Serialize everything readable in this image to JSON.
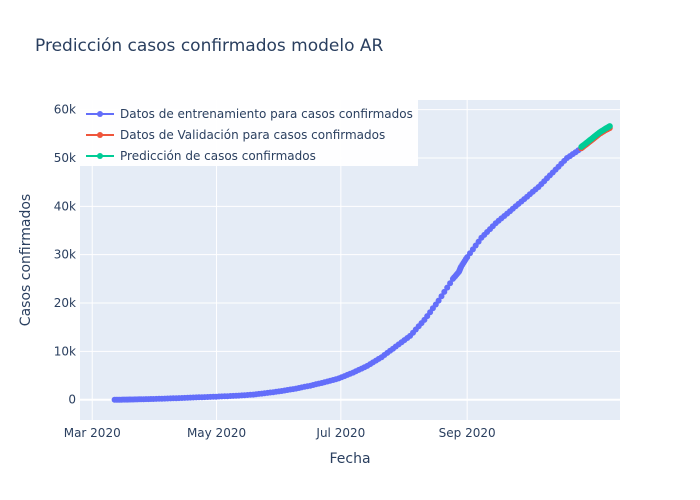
{
  "chart_data": {
    "type": "line",
    "title": "Predicción casos confirmados modelo AR",
    "xlabel": "Fecha",
    "ylabel": "Casos  confirmados",
    "x_range": [
      "2020-02-24",
      "2020-11-15"
    ],
    "ylim": [
      -4200,
      62000
    ],
    "x_ticks": [
      {
        "date": "2020-03-01",
        "label": "Mar 2020"
      },
      {
        "date": "2020-05-01",
        "label": "May 2020"
      },
      {
        "date": "2020-07-01",
        "label": "Jul 2020"
      },
      {
        "date": "2020-09-01",
        "label": "Sep 2020"
      }
    ],
    "y_ticks": [
      {
        "value": 0,
        "label": "0"
      },
      {
        "value": 10000,
        "label": "10k"
      },
      {
        "value": 20000,
        "label": "20k"
      },
      {
        "value": 30000,
        "label": "30k"
      },
      {
        "value": 40000,
        "label": "40k"
      },
      {
        "value": 50000,
        "label": "50k"
      },
      {
        "value": 60000,
        "label": "60k"
      }
    ],
    "grid": true,
    "legend_position": "top-left",
    "plot_background": "#e5ecf6",
    "series": [
      {
        "name": "Datos de entrenamiento para casos confirmados",
        "color": "#636efa",
        "points": [
          [
            "2020-03-12",
            0
          ],
          [
            "2020-03-16",
            10
          ],
          [
            "2020-03-20",
            40
          ],
          [
            "2020-03-25",
            90
          ],
          [
            "2020-03-31",
            150
          ],
          [
            "2020-04-07",
            250
          ],
          [
            "2020-04-14",
            360
          ],
          [
            "2020-04-21",
            470
          ],
          [
            "2020-04-28",
            580
          ],
          [
            "2020-05-05",
            700
          ],
          [
            "2020-05-12",
            850
          ],
          [
            "2020-05-19",
            1050
          ],
          [
            "2020-05-26",
            1400
          ],
          [
            "2020-06-02",
            1800
          ],
          [
            "2020-06-09",
            2300
          ],
          [
            "2020-06-16",
            2900
          ],
          [
            "2020-06-23",
            3600
          ],
          [
            "2020-06-30",
            4400
          ],
          [
            "2020-07-07",
            5600
          ],
          [
            "2020-07-14",
            7000
          ],
          [
            "2020-07-21",
            8800
          ],
          [
            "2020-07-28",
            11000
          ],
          [
            "2020-08-04",
            13200
          ],
          [
            "2020-08-11",
            16500
          ],
          [
            "2020-08-18",
            20500
          ],
          [
            "2020-08-25",
            25000
          ],
          [
            "2020-08-28",
            26500
          ],
          [
            "2020-08-29",
            27500
          ],
          [
            "2020-09-01",
            29500
          ],
          [
            "2020-09-08",
            33500
          ],
          [
            "2020-09-15",
            36500
          ],
          [
            "2020-09-22",
            39000
          ],
          [
            "2020-09-29",
            41500
          ],
          [
            "2020-10-06",
            44000
          ],
          [
            "2020-10-13",
            47000
          ],
          [
            "2020-10-20",
            50000
          ],
          [
            "2020-10-27",
            52000
          ]
        ]
      },
      {
        "name": "Datos de Validación para casos confirmados",
        "color": "#ef553b",
        "points": [
          [
            "2020-10-27",
            52000
          ],
          [
            "2020-10-30",
            53000
          ],
          [
            "2020-11-02",
            54000
          ],
          [
            "2020-11-05",
            55000
          ],
          [
            "2020-11-08",
            55800
          ],
          [
            "2020-11-10",
            56200
          ]
        ]
      },
      {
        "name": "Predicción de casos confirmados",
        "color": "#00cc96",
        "points": [
          [
            "2020-10-27",
            52300
          ],
          [
            "2020-10-30",
            53300
          ],
          [
            "2020-11-02",
            54300
          ],
          [
            "2020-11-05",
            55300
          ],
          [
            "2020-11-08",
            56100
          ],
          [
            "2020-11-10",
            56600
          ]
        ]
      }
    ]
  }
}
